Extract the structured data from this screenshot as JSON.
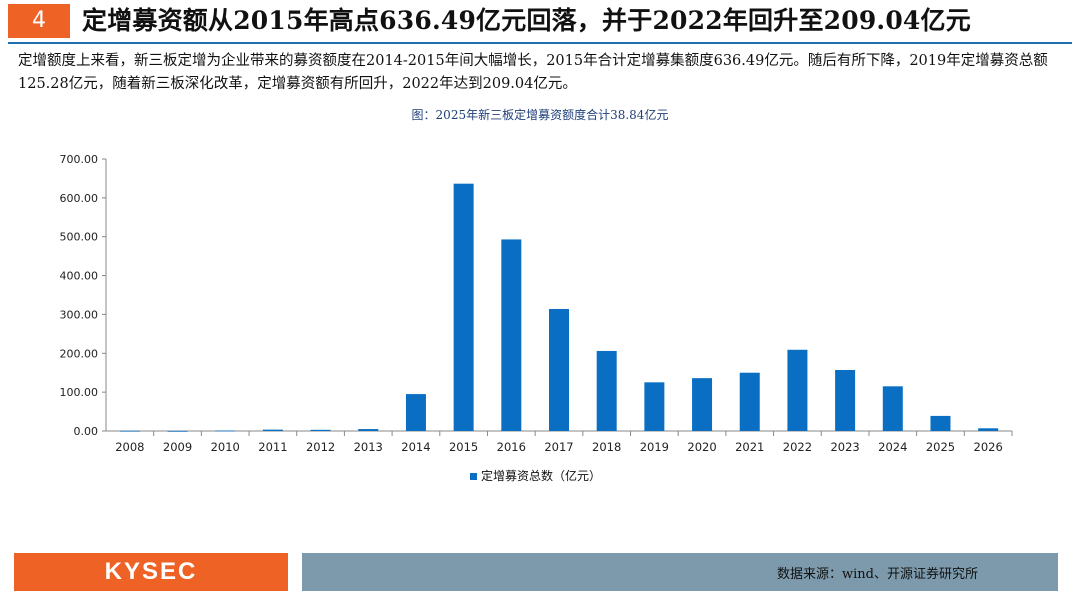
{
  "header": {
    "number": "4",
    "title": "定增募资额从2015年高点636.49亿元回落，并于2022年回升至209.04亿元"
  },
  "summary": "定增额度上来看，新三板定增为企业带来的募资额度在2014-2015年间大幅增长，2015年合计定增募集额度636.49亿元。随后有所下降，2019年定增募资总额125.28亿元，随着新三板深化改革，定增募资额有所回升，2022年达到209.04亿元。",
  "chart_caption": "图：2025年新三板定增募资额度合计38.84亿元",
  "chart_data": {
    "type": "bar",
    "title": "",
    "categories": [
      "2008",
      "2009",
      "2010",
      "2011",
      "2012",
      "2013",
      "2014",
      "2015",
      "2016",
      "2017",
      "2018",
      "2019",
      "2020",
      "2021",
      "2022",
      "2023",
      "2024",
      "2025",
      "2026"
    ],
    "series": [
      {
        "name": "定增募资总数（亿元）",
        "color": "#0a6fc2",
        "values": [
          0.5,
          0.2,
          1.2,
          3.5,
          3.0,
          5.0,
          95.0,
          636.49,
          493.0,
          314.0,
          206.0,
          125.28,
          136.0,
          150.0,
          209.04,
          157.0,
          115.0,
          38.84,
          7.0
        ]
      }
    ],
    "yticks": [
      "0.00",
      "100.00",
      "200.00",
      "300.00",
      "400.00",
      "500.00",
      "600.00",
      "700.00"
    ],
    "ylim": [
      0,
      700
    ],
    "xlabel": "",
    "ylabel": "",
    "legend_position": "bottom"
  },
  "legend_label": "定增募资总数（亿元）",
  "footer": {
    "logo": "KYSEC",
    "source": "数据来源：wind、开源证券研究所"
  },
  "colors": {
    "accent": "#ee6325",
    "bar": "#0a6fc2",
    "rule": "#1e6fb0",
    "footer_bar": "#7c9aac"
  }
}
